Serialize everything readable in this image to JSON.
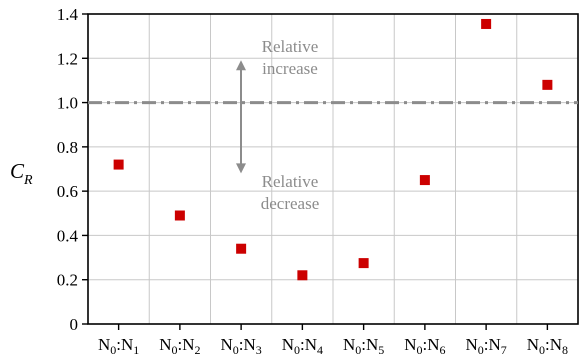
{
  "chart_data": {
    "type": "scatter",
    "categories": [
      {
        "base": "N",
        "sub0": "0",
        "sep": ":",
        "base2": "N",
        "sub1": "1"
      },
      {
        "base": "N",
        "sub0": "0",
        "sep": ":",
        "base2": "N",
        "sub1": "2"
      },
      {
        "base": "N",
        "sub0": "0",
        "sep": ":",
        "base2": "N",
        "sub1": "3"
      },
      {
        "base": "N",
        "sub0": "0",
        "sep": ":",
        "base2": "N",
        "sub1": "4"
      },
      {
        "base": "N",
        "sub0": "0",
        "sep": ":",
        "base2": "N",
        "sub1": "5"
      },
      {
        "base": "N",
        "sub0": "0",
        "sep": ":",
        "base2": "N",
        "sub1": "6"
      },
      {
        "base": "N",
        "sub0": "0",
        "sep": ":",
        "base2": "N",
        "sub1": "7"
      },
      {
        "base": "N",
        "sub0": "0",
        "sep": ":",
        "base2": "N",
        "sub1": "8"
      }
    ],
    "values": [
      0.72,
      0.49,
      0.34,
      0.22,
      0.275,
      0.65,
      1.355,
      1.08
    ],
    "ylabel": {
      "main": "C",
      "sub": "R"
    },
    "ylim": [
      0,
      1.4
    ],
    "yticks": [
      "0",
      "0.2",
      "0.4",
      "0.6",
      "0.8",
      "1.0",
      "1.2",
      "1.4"
    ],
    "reference_line": 1.0,
    "grid": true,
    "marker_color": "#cc0000",
    "reference_line_color": "#8c8c8c",
    "annotations": {
      "increase": [
        "Relative",
        "increase"
      ],
      "decrease": [
        "Relative",
        "decrease"
      ]
    }
  }
}
